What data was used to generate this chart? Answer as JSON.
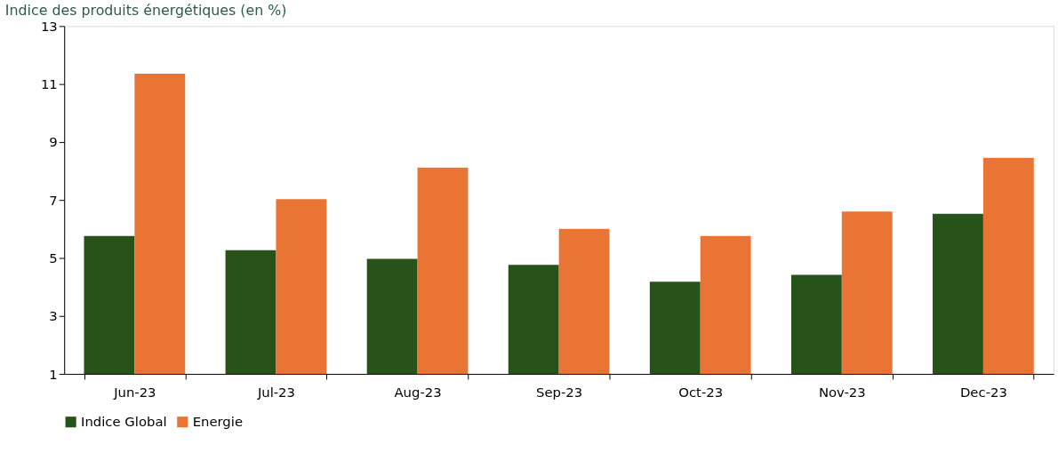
{
  "chart_data": {
    "type": "bar",
    "ylabel": "Indice des produits énergétiques (en %)",
    "categories": [
      "Jun-23",
      "Jul-23",
      "Aug-23",
      "Sep-23",
      "Oct-23",
      "Nov-23",
      "Dec-23"
    ],
    "series": [
      {
        "name": "Indice Global",
        "color": "#27521a",
        "values": [
          5.76,
          5.27,
          4.97,
          4.76,
          4.18,
          4.42,
          6.52
        ]
      },
      {
        "name": "Energie",
        "color": "#ea7434",
        "values": [
          11.36,
          7.03,
          8.12,
          6.0,
          5.76,
          6.6,
          8.45
        ]
      }
    ],
    "ylim": [
      1,
      13
    ],
    "yticks": [
      1,
      3,
      5,
      7,
      9,
      11,
      13
    ],
    "grid": false,
    "legend": "bottom"
  }
}
